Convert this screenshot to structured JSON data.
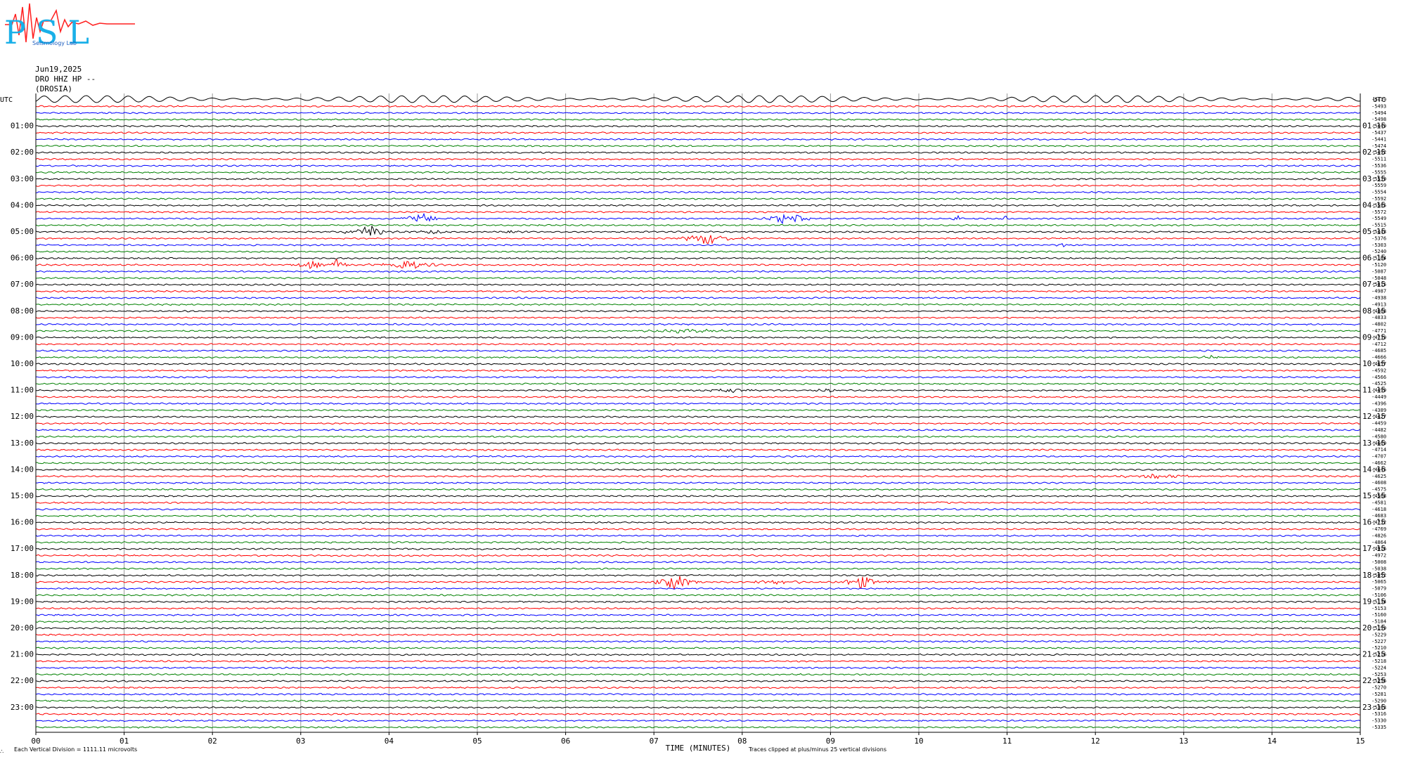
{
  "header": {
    "logo_text": "PSL",
    "logo_subtext": "Seismology Lab",
    "date": "Jun19,2025",
    "channel": "DRO HHZ HP --",
    "station": "(DROSIA)"
  },
  "chart_data": {
    "type": "line",
    "title": "Jun19,2025",
    "xlabel": "TIME (MINUTES)",
    "x_tick_labels": [
      "00",
      "01",
      "02",
      "03",
      "04",
      "05",
      "06",
      "07",
      "08",
      "09",
      "10",
      "11",
      "12",
      "13",
      "14",
      "15"
    ],
    "xlim": [
      0,
      15
    ],
    "left_axis_label": "UTC",
    "right_axis_label": "UTC",
    "left_hour_labels": [
      "01:00",
      "02:00",
      "03:00",
      "04:00",
      "05:00",
      "06:00",
      "07:00",
      "08:00",
      "09:00",
      "10:00",
      "11:00",
      "12:00",
      "13:00",
      "14:00",
      "15:00",
      "16:00",
      "17:00",
      "18:00",
      "19:00",
      "20:00",
      "21:00",
      "22:00",
      "23:00"
    ],
    "right_hour_labels": [
      "01:15",
      "02:15",
      "03:15",
      "04:15",
      "05:15",
      "06:15",
      "07:15",
      "08:15",
      "09:15",
      "10:15",
      "11:15",
      "12:15",
      "13:15",
      "14:15",
      "15:15",
      "16:15",
      "17:15",
      "18:15",
      "19:15",
      "20:15",
      "21:15",
      "22:15",
      "23:15"
    ],
    "trace_count": 96,
    "trace_colors": [
      "#000000",
      "#ff0000",
      "#0000ff",
      "#008000"
    ],
    "trace_offsets": [
      "-5479",
      "-5493",
      "-5494",
      "-5498",
      "-5449",
      "-5437",
      "-5441",
      "-5474",
      "-5492",
      "-5511",
      "-5536",
      "-5555",
      "-5539",
      "-5559",
      "-5554",
      "-5592",
      "-5585",
      "-5572",
      "-5549",
      "-5515",
      "-5443",
      "-5376",
      "-5303",
      "-5240",
      "-5184",
      "-5120",
      "-5087",
      "-5048",
      "-5015",
      "-4987",
      "-4938",
      "-4913",
      "-4868",
      "-4833",
      "-4802",
      "-4771",
      "-4739",
      "-4712",
      "-4685",
      "-4666",
      "-4657",
      "-4592",
      "-4566",
      "-4525",
      "-4499",
      "-4449",
      "-4396",
      "-4389",
      "-4427",
      "-4459",
      "-4482",
      "-4580",
      "-4669",
      "-4714",
      "-4707",
      "-4662",
      "-4645",
      "-4625",
      "-4608",
      "-4575",
      "-4568",
      "-4581",
      "-4618",
      "-4683",
      "-4732",
      "-4769",
      "-4826",
      "-4864",
      "-4916",
      "-4972",
      "-5008",
      "-5038",
      "-5052",
      "-5065",
      "-5079",
      "-5106",
      "-5134",
      "-5153",
      "-5160",
      "-5184",
      "-5199",
      "-5229",
      "-5227",
      "-5210",
      "-5216",
      "-5218",
      "-5224",
      "-5253",
      "-5256",
      "-5270",
      "-5281",
      "-5290",
      "-5303",
      "-5316",
      "-5330",
      "-5335"
    ],
    "events": [
      {
        "trace": 18,
        "minute": 4.35,
        "width": 0.35,
        "amp": 10
      },
      {
        "trace": 18,
        "minute": 8.52,
        "width": 0.35,
        "amp": 12
      },
      {
        "trace": 18,
        "minute": 10.45,
        "width": 0.1,
        "amp": 6
      },
      {
        "trace": 18,
        "minute": 10.98,
        "width": 0.15,
        "amp": 5
      },
      {
        "trace": 20,
        "minute": 3.8,
        "width": 0.45,
        "amp": 9
      },
      {
        "trace": 20,
        "minute": 4.5,
        "width": 0.35,
        "amp": 3
      },
      {
        "trace": 20,
        "minute": 5.4,
        "width": 0.25,
        "amp": 2
      },
      {
        "trace": 21,
        "minute": 7.6,
        "width": 0.55,
        "amp": 9
      },
      {
        "trace": 22,
        "minute": 11.65,
        "width": 0.25,
        "amp": 2
      },
      {
        "trace": 25,
        "minute": 3.1,
        "width": 0.3,
        "amp": 7
      },
      {
        "trace": 25,
        "minute": 3.42,
        "width": 0.15,
        "amp": 10
      },
      {
        "trace": 25,
        "minute": 4.2,
        "width": 0.55,
        "amp": 8
      },
      {
        "trace": 35,
        "minute": 7.4,
        "width": 1.0,
        "amp": 3
      },
      {
        "trace": 39,
        "minute": 13.3,
        "width": 0.2,
        "amp": 3
      },
      {
        "trace": 44,
        "minute": 7.9,
        "width": 0.6,
        "amp": 3
      },
      {
        "trace": 44,
        "minute": 8.95,
        "width": 0.35,
        "amp": 3
      },
      {
        "trace": 57,
        "minute": 12.7,
        "width": 1.2,
        "amp": 3
      },
      {
        "trace": 61,
        "minute": 10.25,
        "width": 0.15,
        "amp": 3
      },
      {
        "trace": 73,
        "minute": 7.25,
        "width": 0.35,
        "amp": 14
      },
      {
        "trace": 73,
        "minute": 8.4,
        "width": 0.8,
        "amp": 3
      },
      {
        "trace": 73,
        "minute": 9.35,
        "width": 0.4,
        "amp": 10
      },
      {
        "trace": 80,
        "minute": 13.3,
        "width": 0.25,
        "amp": 3
      }
    ],
    "bottom_note_left": "Each Vertical Division = 1111.11 microvolts",
    "bottom_note_right": "Traces clipped at plus/minus 25 vertical divisions",
    "bottom_corner": "∴"
  }
}
